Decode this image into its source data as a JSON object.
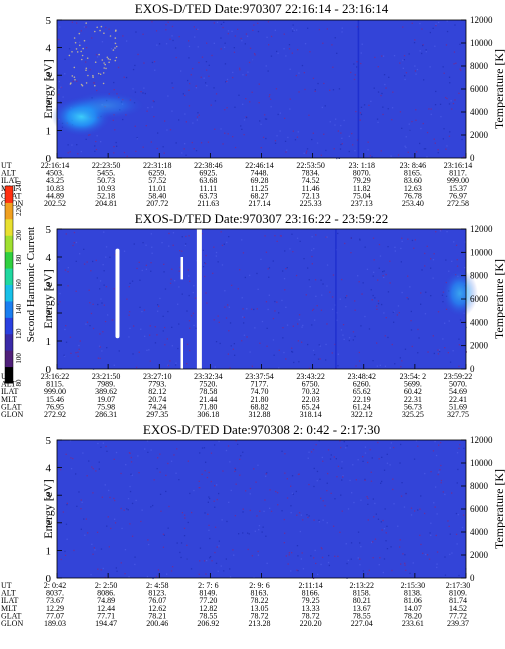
{
  "colorbar": {
    "label": "Second Harmonic Current",
    "ticks": [
      "80",
      "100",
      "120",
      "140",
      "160",
      "180",
      "200",
      "220",
      "240"
    ],
    "range": [
      80,
      240
    ]
  },
  "chart_data": [
    {
      "type": "heatmap",
      "title": "EXOS-D/TED   Date:970307  22:16:14 - 23:16:14",
      "ylabel": "Energy [eV]",
      "y2label": "Temperature [K]",
      "ylim": [
        0,
        5
      ],
      "y2lim": [
        0,
        12000
      ],
      "yticks": [
        "0",
        "1",
        "2",
        "3",
        "4",
        "5"
      ],
      "y2ticks": [
        "0",
        "2000",
        "4000",
        "6000",
        "8000",
        "10000",
        "12000"
      ],
      "orbit_labels": [
        "UT",
        "ALT",
        "ILAT",
        "MLT",
        "GLAT",
        "GLON"
      ],
      "orbit_columns": [
        [
          "22:16:14",
          "4503.",
          "43.25",
          "10.83",
          "44.89",
          "202.52"
        ],
        [
          "22:23:50",
          "5455.",
          "50.73",
          "10.93",
          "52.18",
          "204.81"
        ],
        [
          "22:31:18",
          "6259.",
          "57.52",
          "11.01",
          "58.40",
          "207.72"
        ],
        [
          "22:38:46",
          "6925.",
          "63.68",
          "11.11",
          "63.73",
          "211.63"
        ],
        [
          "22:46:14",
          "7448.",
          "69.28",
          "11.25",
          "68.27",
          "217.14"
        ],
        [
          "22:53:50",
          "7834.",
          "74.52",
          "11.46",
          "72.13",
          "225.33"
        ],
        [
          "23: 1:18",
          "8070.",
          "79.29",
          "11.82",
          "75.04",
          "237.13"
        ],
        [
          "23: 8:46",
          "8165.",
          "83.60",
          "12.63",
          "76.78",
          "253.40"
        ],
        [
          "23:16:14",
          "8117.",
          "999.00",
          "15.37",
          "76.97",
          "272.58"
        ]
      ],
      "features": [
        {
          "kind": "blob",
          "x_frac": 0.06,
          "energy_ev": 1.5,
          "intensity": 0.85
        },
        {
          "kind": "blob",
          "x_frac": 0.12,
          "energy_ev": 1.9,
          "intensity": 0.35
        },
        {
          "kind": "vline",
          "x_frac": 0.735,
          "intensity": 0.35
        }
      ]
    },
    {
      "type": "heatmap",
      "title": "EXOS-D/TED   Date:970307  23:16:22 - 23:59:22",
      "ylabel": "Energy [eV]",
      "y2label": "Temperature [K]",
      "ylim": [
        0,
        5
      ],
      "y2lim": [
        0,
        12000
      ],
      "yticks": [
        "0",
        "1",
        "2",
        "3",
        "4",
        "5"
      ],
      "y2ticks": [
        "0",
        "2000",
        "4000",
        "6000",
        "8000",
        "10000",
        "12000"
      ],
      "orbit_labels": [
        "UT",
        "ALT",
        "ILAT",
        "MLT",
        "GLAT",
        "GLON"
      ],
      "orbit_columns": [
        [
          "23:16:22",
          "8115.",
          "999.00",
          "15.46",
          "76.95",
          "272.92"
        ],
        [
          "23:21:50",
          "7989.",
          "389.62",
          "19.07",
          "75.98",
          "286.31"
        ],
        [
          "23:27:10",
          "7793.",
          "82.12",
          "20.74",
          "74.24",
          "297.35"
        ],
        [
          "23:32:34",
          "7520.",
          "78.58",
          "21.44",
          "71.80",
          "306.18"
        ],
        [
          "23:37:54",
          "7177.",
          "74.70",
          "21.80",
          "68.82",
          "312.88"
        ],
        [
          "23:43:22",
          "6750.",
          "70.32",
          "22.03",
          "65.24",
          "318.14"
        ],
        [
          "23:48:42",
          "6260.",
          "65.62",
          "22.19",
          "61.24",
          "322.12"
        ],
        [
          "23:54: 2",
          "5699.",
          "60.42",
          "22.31",
          "56.73",
          "325.25"
        ],
        [
          "23:59:22",
          "5070.",
          "54.69",
          "22.41",
          "51.69",
          "327.75"
        ]
      ],
      "features": [
        {
          "kind": "blob",
          "x_frac": 0.985,
          "energy_ev": 2.7,
          "intensity": 0.6
        },
        {
          "kind": "gap",
          "x_frac": 0.342
        },
        {
          "kind": "vline",
          "x_frac": 0.68,
          "intensity": 0.3
        }
      ]
    },
    {
      "type": "heatmap",
      "title": "EXOS-D/TED   Date:970308  2: 0:42 - 2:17:30",
      "ylabel": "Energy [eV]",
      "y2label": "Temperature [K]",
      "ylim": [
        0,
        5
      ],
      "y2lim": [
        0,
        12000
      ],
      "yticks": [
        "0",
        "1",
        "2",
        "3",
        "4",
        "5"
      ],
      "y2ticks": [
        "0",
        "2000",
        "4000",
        "6000",
        "8000",
        "10000",
        "12000"
      ],
      "orbit_labels": [
        "UT",
        "ALT",
        "ILAT",
        "MLT",
        "GLAT",
        "GLON"
      ],
      "orbit_columns": [
        [
          "2: 0:42",
          "8037.",
          "73.67",
          "12.29",
          "77.07",
          "189.03"
        ],
        [
          "2: 2:50",
          "8086.",
          "74.89",
          "12.44",
          "77.71",
          "194.47"
        ],
        [
          "2: 4:58",
          "8123.",
          "76.07",
          "12.62",
          "78.21",
          "200.46"
        ],
        [
          "2: 7: 6",
          "8149.",
          "77.20",
          "12.82",
          "78.55",
          "206.92"
        ],
        [
          "2: 9: 6",
          "8163.",
          "78.22",
          "13.05",
          "78.72",
          "213.28"
        ],
        [
          "2:11:14",
          "8166.",
          "79.25",
          "13.33",
          "78.72",
          "220.20"
        ],
        [
          "2:13:22",
          "8158.",
          "80.21",
          "13.67",
          "78.55",
          "227.04"
        ],
        [
          "2:15:30",
          "8138.",
          "81.06",
          "14.07",
          "78.20",
          "233.61"
        ],
        [
          "2:17:30",
          "8109.",
          "81.74",
          "14.52",
          "77.72",
          "239.37"
        ]
      ],
      "features": []
    }
  ]
}
